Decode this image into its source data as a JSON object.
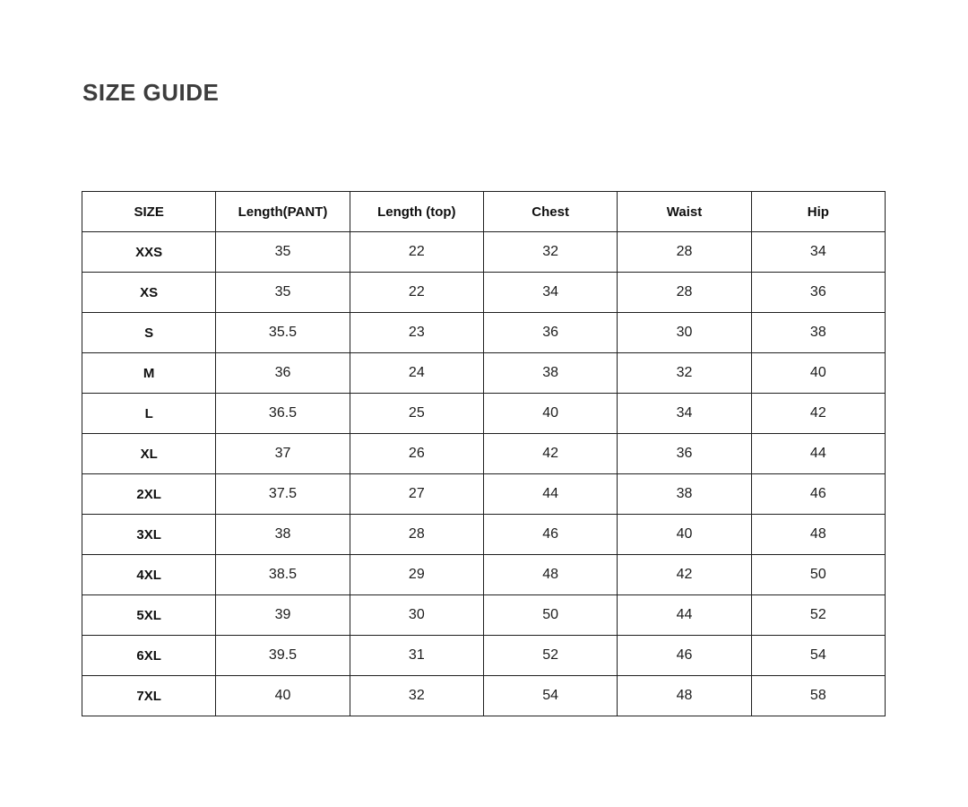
{
  "page": {
    "title": "SIZE GUIDE"
  },
  "colors": {
    "background": "#ffffff",
    "title_text": "#3d3d3d",
    "table_border": "#1f1f1f",
    "header_text": "#0f0f0f",
    "cell_text": "#1c1c1c"
  },
  "size_table": {
    "headers": [
      "SIZE",
      "Length(PANT)",
      "Length (top)",
      "Chest",
      "Waist",
      "Hip"
    ],
    "rows": [
      {
        "size": "XXS",
        "values": [
          "35",
          "22",
          "32",
          "28",
          "34"
        ]
      },
      {
        "size": "XS",
        "values": [
          "35",
          "22",
          "34",
          "28",
          "36"
        ]
      },
      {
        "size": "S",
        "values": [
          "35.5",
          "23",
          "36",
          "30",
          "38"
        ]
      },
      {
        "size": "M",
        "values": [
          "36",
          "24",
          "38",
          "32",
          "40"
        ]
      },
      {
        "size": "L",
        "values": [
          "36.5",
          "25",
          "40",
          "34",
          "42"
        ]
      },
      {
        "size": "XL",
        "values": [
          "37",
          "26",
          "42",
          "36",
          "44"
        ]
      },
      {
        "size": "2XL",
        "values": [
          "37.5",
          "27",
          "44",
          "38",
          "46"
        ]
      },
      {
        "size": "3XL",
        "values": [
          "38",
          "28",
          "46",
          "40",
          "48"
        ]
      },
      {
        "size": "4XL",
        "values": [
          "38.5",
          "29",
          "48",
          "42",
          "50"
        ]
      },
      {
        "size": "5XL",
        "values": [
          "39",
          "30",
          "50",
          "44",
          "52"
        ]
      },
      {
        "size": "6XL",
        "values": [
          "39.5",
          "31",
          "52",
          "46",
          "54"
        ]
      },
      {
        "size": "7XL",
        "values": [
          "40",
          "32",
          "54",
          "48",
          "58"
        ]
      }
    ]
  }
}
